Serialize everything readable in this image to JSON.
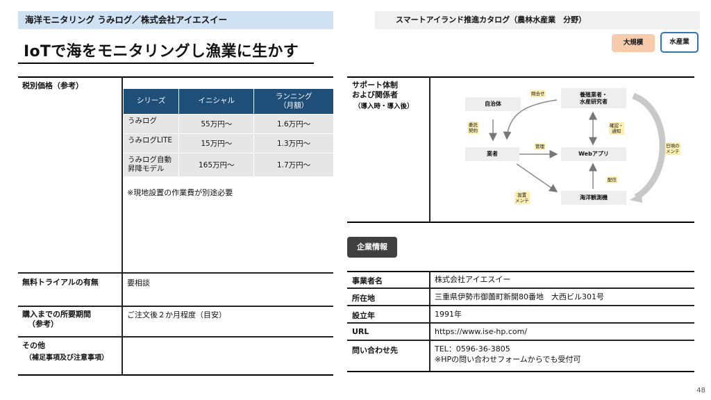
{
  "header_left": "海洋モニタリング うみログ／株式会社アイエスイー",
  "header_right": "スマートアイランド推進カタログ（農林水産業　分野）",
  "title": "IoTで海をモニタリングし漁業に生かす",
  "tags": [
    "大規模",
    "水産業"
  ],
  "price": {
    "label": "税別価格（参考）",
    "columns": [
      "シリーズ",
      "イニシャル",
      "ランニング",
      "（月額）"
    ],
    "rows": [
      {
        "series": "うみログ",
        "initial": "55万円～",
        "running": "1.6万円～"
      },
      {
        "series": "うみログLITE",
        "initial": "15万円～",
        "running": "1.3万円～"
      },
      {
        "series": "うみログ自動",
        "series2": "昇降モデル",
        "initial": "165万円～",
        "running": "1.7万円～"
      }
    ],
    "note": "※現地設置の作業費が別途必要"
  },
  "trial": {
    "label": "無料トライアルの有無",
    "value": "要相談"
  },
  "lead_time": {
    "label": "購入までの所要期間",
    "label2": "（参考）",
    "value": "ご注文後２か月程度（目安）"
  },
  "other": {
    "label": "その他",
    "label2": "（補足事項及び注意事項）"
  },
  "support": {
    "label1": "サポート体制",
    "label2": "および関係者",
    "label3": "（導入時・導入後）",
    "nodes": {
      "local_gov": "自治体",
      "aquaculture1": "養殖業者・",
      "aquaculture2": "水産研究者",
      "operator": "業者",
      "webapp": "Webアプリ",
      "observer": "海洋観測機"
    },
    "labels": {
      "inquiry": "問合せ",
      "consign1": "委託",
      "consign2": "契約",
      "manage": "管理",
      "confirm1": "確認・",
      "confirm2": "通知",
      "daily1": "日頃の",
      "daily2": "メンテ",
      "install1": "設置",
      "install2": "メンテ",
      "deliver": "配信"
    }
  },
  "company": {
    "section_title": "企業情報",
    "rows": [
      {
        "label": "事業者名",
        "value": "株式会社アイエスイー"
      },
      {
        "label": "所在地",
        "value": "三重県伊勢市御薗町新開80番地　大西ビル301号"
      },
      {
        "label": "設立年",
        "value": "1991年"
      },
      {
        "label": "URL",
        "value": "https://www.ise-hp.com/"
      },
      {
        "label": "問い合わせ先",
        "value": "TEL：0596-36-3805",
        "value2": "※HPの問い合わせフォームからでも受付可"
      }
    ]
  },
  "page_number": "48"
}
